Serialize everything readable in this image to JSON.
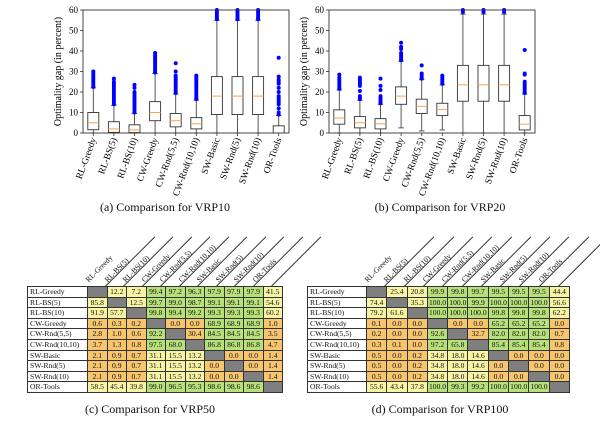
{
  "chart_data": [
    {
      "type": "box",
      "caption": "(a) Comparison for VRP10",
      "ylabel": "Optimality gap (in percent)",
      "ylim": [
        0,
        60
      ],
      "yticks": [
        0,
        10,
        20,
        30,
        40,
        50,
        60
      ],
      "categories": [
        "RL-Greedy",
        "RL-BS(5)",
        "RL-BS(10)",
        "CW-Greedy",
        "CW-Rnd(5,5)",
        "CW-Rnd(10,10)",
        "SW-Basic",
        "SW-Rnd(5)",
        "SW-Rnd(10)",
        "OR-Tools"
      ],
      "boxes": [
        {
          "whisker_low": 0,
          "q1": 1.6,
          "median": 5,
          "q3": 10,
          "whisker_high": 22,
          "outliers": [
            22.5,
            23,
            24,
            25,
            26,
            27,
            28,
            29,
            30
          ]
        },
        {
          "whisker_low": 0,
          "q1": 0.3,
          "median": 2,
          "q3": 5.5,
          "whisker_high": 13.5,
          "outliers": [
            14,
            15,
            16,
            17,
            18,
            19,
            20,
            21,
            22,
            23,
            24,
            25,
            26.5
          ]
        },
        {
          "whisker_low": 0,
          "q1": 0.2,
          "median": 1.5,
          "q3": 4,
          "whisker_high": 9.5,
          "outliers": [
            10,
            11,
            12,
            13,
            14,
            15,
            16,
            17,
            18,
            19,
            20,
            22,
            23.5
          ]
        },
        {
          "whisker_low": 0,
          "q1": 6,
          "median": 10,
          "q3": 15.3,
          "whisker_high": 29,
          "outliers": [
            29.5,
            30,
            31,
            32,
            33,
            34,
            35,
            36,
            37,
            38,
            39
          ]
        },
        {
          "whisker_low": 0,
          "q1": 3,
          "median": 6,
          "q3": 9.5,
          "whisker_high": 19,
          "outliers": [
            19.5,
            20,
            21,
            22,
            23,
            24,
            25,
            26,
            27,
            28,
            30,
            34
          ]
        },
        {
          "whisker_low": 0,
          "q1": 2,
          "median": 4.5,
          "q3": 7.5,
          "whisker_high": 16,
          "outliers": [
            16.5,
            17,
            18,
            19,
            20,
            21,
            22,
            23,
            24,
            25,
            26,
            27,
            28
          ]
        },
        {
          "whisker_low": 0,
          "q1": 9,
          "median": 18,
          "q3": 27.5,
          "whisker_high": 55,
          "outliers": [
            55.5,
            56,
            57,
            58,
            59,
            60
          ]
        },
        {
          "whisker_low": 0,
          "q1": 9,
          "median": 18,
          "q3": 27.5,
          "whisker_high": 55,
          "outliers": [
            55.5,
            56,
            57,
            58,
            59,
            60
          ]
        },
        {
          "whisker_low": 0,
          "q1": 9,
          "median": 18,
          "q3": 27.5,
          "whisker_high": 55,
          "outliers": [
            55.5,
            56,
            57,
            58,
            59,
            60
          ]
        },
        {
          "whisker_low": 0,
          "q1": 0,
          "median": 0,
          "q3": 3.5,
          "whisker_high": 8.5,
          "outliers": [
            9,
            10,
            12,
            14,
            15,
            16,
            17,
            18,
            20,
            22,
            24,
            25,
            26,
            27.5,
            36.7
          ]
        }
      ],
      "colors": {
        "box": "#333333",
        "median": "#f5a54a",
        "outlier": "#0000ff"
      }
    },
    {
      "type": "box",
      "caption": "(b) Comparison for VRP20",
      "ylabel": "Optimality gap (in percent)",
      "ylim": [
        0,
        60
      ],
      "yticks": [
        0,
        10,
        20,
        30,
        40,
        50,
        60
      ],
      "categories": [
        "RL-Greedy",
        "RL-BS(5)",
        "RL-BS(10)",
        "CW-Greedy",
        "CW-Rnd(5,5)",
        "CW-Rnd(10,10)",
        "SW-Basic",
        "SW-Rnd(5)",
        "SW-Rnd(10)",
        "OR-Tools"
      ],
      "boxes": [
        {
          "whisker_low": 0,
          "q1": 4.3,
          "median": 7.3,
          "q3": 11.3,
          "whisker_high": 21,
          "outliers": [
            21.5,
            22,
            23,
            24,
            25,
            26,
            27,
            28.5
          ]
        },
        {
          "whisker_low": 0,
          "q1": 2.5,
          "median": 5,
          "q3": 8,
          "whisker_high": 16,
          "outliers": [
            16.5,
            17,
            18,
            20.5,
            23,
            24,
            25,
            26,
            27
          ]
        },
        {
          "whisker_low": 0,
          "q1": 2,
          "median": 4.5,
          "q3": 7,
          "whisker_high": 14,
          "outliers": [
            14.5,
            15,
            16,
            17,
            18,
            21,
            23,
            26.5
          ]
        },
        {
          "whisker_low": 2.5,
          "q1": 14,
          "median": 18,
          "q3": 22.5,
          "whisker_high": 35,
          "outliers": [
            35.5,
            36,
            37,
            38,
            39,
            41,
            42,
            44
          ]
        },
        {
          "whisker_low": 1,
          "q1": 9.5,
          "median": 13,
          "q3": 16.5,
          "whisker_high": 26,
          "outliers": [
            26.5,
            27,
            28,
            29,
            33
          ]
        },
        {
          "whisker_low": 1.5,
          "q1": 8.5,
          "median": 11.5,
          "q3": 14.5,
          "whisker_high": 23.5,
          "outliers": [
            24,
            25,
            26,
            27,
            28
          ]
        },
        {
          "whisker_low": 0,
          "q1": 15.5,
          "median": 23.5,
          "q3": 33,
          "whisker_high": 58,
          "outliers": [
            59,
            60
          ]
        },
        {
          "whisker_low": 0,
          "q1": 15.5,
          "median": 23.5,
          "q3": 33,
          "whisker_high": 58,
          "outliers": [
            59,
            60
          ]
        },
        {
          "whisker_low": 0,
          "q1": 15.5,
          "median": 23.5,
          "q3": 33,
          "whisker_high": 58,
          "outliers": [
            59,
            60
          ]
        },
        {
          "whisker_low": 0,
          "q1": 1.5,
          "median": 4.3,
          "q3": 8.5,
          "whisker_high": 19,
          "outliers": [
            19.5,
            20,
            21,
            22,
            23,
            24,
            25,
            28.5,
            29,
            40.5
          ]
        }
      ],
      "colors": {
        "box": "#333333",
        "median": "#f5a54a",
        "outlier": "#0000ff"
      }
    }
  ],
  "tables": [
    {
      "caption": "(c) Comparison for VRP50",
      "columns": [
        "RL-Greedy",
        "RL-BS(5)",
        "RL-BS(10)",
        "CW-Greedy",
        "CW-Rnd(5,5)",
        "CW-Rnd(10,10)",
        "SW-Basic",
        "SW-Rnd(5)",
        "SW-Rnd(10)",
        "OR-Tools"
      ],
      "rows": [
        {
          "label": "RL-Greedy",
          "values": [
            "",
            "12.2",
            "7.2",
            "99.4",
            "97.2",
            "96.3",
            "97.9",
            "97.9",
            "97.9",
            "41.5"
          ],
          "colors": [
            "x",
            "y",
            "y",
            "g",
            "g",
            "g",
            "g",
            "g",
            "g",
            "y"
          ]
        },
        {
          "label": "RL-BS(5)",
          "values": [
            "85.8",
            "",
            "12.5",
            "99.7",
            "99.0",
            "98.7",
            "99.1",
            "99.1",
            "99.1",
            "54.6"
          ],
          "colors": [
            "y",
            "x",
            "y",
            "g",
            "g",
            "g",
            "g",
            "g",
            "g",
            "y"
          ]
        },
        {
          "label": "RL-BS(10)",
          "values": [
            "91.9",
            "57.7",
            "",
            "99.8",
            "99.4",
            "99.2",
            "99.3",
            "99.3",
            "99.3",
            "60.2"
          ],
          "colors": [
            "y",
            "y",
            "x",
            "g",
            "g",
            "g",
            "g",
            "g",
            "g",
            "y"
          ]
        },
        {
          "label": "CW-Greedy",
          "values": [
            "0.6",
            "0.3",
            "0.2",
            "",
            "0.0",
            "0.0",
            "68.9",
            "68.9",
            "68.9",
            "1.0"
          ],
          "colors": [
            "o",
            "o",
            "o",
            "x",
            "o",
            "o",
            "g",
            "g",
            "g",
            "o"
          ]
        },
        {
          "label": "CW-Rnd(5,5)",
          "values": [
            "2.8",
            "1.0",
            "0.6",
            "92.2",
            "",
            "30.4",
            "84.5",
            "84.5",
            "84.5",
            "3.5"
          ],
          "colors": [
            "o",
            "o",
            "o",
            "g",
            "x",
            "o",
            "g",
            "g",
            "g",
            "o"
          ]
        },
        {
          "label": "CW-Rnd(10,10)",
          "values": [
            "3.7",
            "1.3",
            "0.8",
            "97.5",
            "68.0",
            "",
            "86.8",
            "86.8",
            "86.8",
            "4.7"
          ],
          "colors": [
            "o",
            "o",
            "o",
            "g",
            "g",
            "x",
            "g",
            "g",
            "g",
            "o"
          ]
        },
        {
          "label": "SW-Basic",
          "values": [
            "2.1",
            "0.9",
            "0.7",
            "31.1",
            "15.5",
            "13.2",
            "",
            "0.0",
            "0.0",
            "1.4"
          ],
          "colors": [
            "o",
            "o",
            "o",
            "y",
            "y",
            "y",
            "x",
            "o",
            "o",
            "o"
          ]
        },
        {
          "label": "SW-Rnd(5)",
          "values": [
            "2.1",
            "0.9",
            "0.7",
            "31.1",
            "15.5",
            "13.2",
            "0.0",
            "",
            "0.0",
            "1.4"
          ],
          "colors": [
            "o",
            "o",
            "o",
            "y",
            "y",
            "y",
            "o",
            "x",
            "o",
            "o"
          ]
        },
        {
          "label": "SW-Rnd(10)",
          "values": [
            "2.1",
            "0.9",
            "0.7",
            "31.1",
            "15.5",
            "13.2",
            "0.0",
            "0.0",
            "",
            "1.4"
          ],
          "colors": [
            "o",
            "o",
            "o",
            "y",
            "y",
            "y",
            "o",
            "o",
            "x",
            "o"
          ]
        },
        {
          "label": "OR-Tools",
          "values": [
            "58.5",
            "45.4",
            "39.8",
            "99.0",
            "96.5",
            "95.3",
            "98.6",
            "98.6",
            "98.6",
            ""
          ],
          "colors": [
            "y",
            "y",
            "y",
            "g",
            "g",
            "g",
            "g",
            "g",
            "g",
            "x"
          ]
        }
      ]
    },
    {
      "caption": "(d) Comparison for VRP100",
      "columns": [
        "RL-Greedy",
        "RL-BS(5)",
        "RL-BS(10)",
        "CW-Greedy",
        "CW-Rnd(5,5)",
        "CW-Rnd(10,10)",
        "SW-Basic",
        "SW-Rnd(5)",
        "SW-Rnd(10)",
        "OR-Tools"
      ],
      "rows": [
        {
          "label": "RL-Greedy",
          "values": [
            "",
            "25.4",
            "20.8",
            "99.9",
            "99.8",
            "99.7",
            "99.5",
            "99.5",
            "99.5",
            "44.4"
          ],
          "colors": [
            "x",
            "y",
            "y",
            "g",
            "g",
            "g",
            "g",
            "g",
            "g",
            "y"
          ]
        },
        {
          "label": "RL-BS(5)",
          "values": [
            "74.4",
            "",
            "35.3",
            "100.0",
            "100.0",
            "99.9",
            "100.0",
            "100.0",
            "100.0",
            "56.6"
          ],
          "colors": [
            "y",
            "x",
            "y",
            "g",
            "g",
            "g",
            "g",
            "g",
            "g",
            "y"
          ]
        },
        {
          "label": "RL-BS(10)",
          "values": [
            "79.2",
            "61.6",
            "",
            "100.0",
            "100.0",
            "100.0",
            "99.8",
            "99.8",
            "99.8",
            "62.2"
          ],
          "colors": [
            "y",
            "y",
            "x",
            "g",
            "g",
            "g",
            "g",
            "g",
            "g",
            "y"
          ]
        },
        {
          "label": "CW-Greedy",
          "values": [
            "0.1",
            "0.0",
            "0.0",
            "",
            "0.0",
            "0.0",
            "65.2",
            "65.2",
            "65.2",
            "0.0"
          ],
          "colors": [
            "o",
            "o",
            "o",
            "x",
            "o",
            "o",
            "g",
            "g",
            "g",
            "o"
          ]
        },
        {
          "label": "CW-Rnd(5,5)",
          "values": [
            "0.2",
            "0.0",
            "0.0",
            "92.6",
            "",
            "32.7",
            "82.0",
            "82.0",
            "82.0",
            "0.7"
          ],
          "colors": [
            "o",
            "o",
            "o",
            "g",
            "x",
            "o",
            "g",
            "g",
            "g",
            "o"
          ]
        },
        {
          "label": "CW-Rnd(10,10)",
          "values": [
            "0.3",
            "0.1",
            "0.0",
            "97.2",
            "65.8",
            "",
            "85.4",
            "85.4",
            "85.4",
            "0.8"
          ],
          "colors": [
            "o",
            "o",
            "o",
            "g",
            "g",
            "x",
            "g",
            "g",
            "g",
            "o"
          ]
        },
        {
          "label": "SW-Basic",
          "values": [
            "0.5",
            "0.0",
            "0.2",
            "34.8",
            "18.0",
            "14.6",
            "",
            "0.0",
            "0.0",
            "0.0"
          ],
          "colors": [
            "o",
            "o",
            "o",
            "y",
            "y",
            "y",
            "x",
            "o",
            "o",
            "o"
          ]
        },
        {
          "label": "SW-Rnd(5)",
          "values": [
            "0.5",
            "0.0",
            "0.2",
            "34.8",
            "18.0",
            "14.6",
            "0.0",
            "",
            "0.0",
            "0.0"
          ],
          "colors": [
            "o",
            "o",
            "o",
            "y",
            "y",
            "y",
            "o",
            "x",
            "o",
            "o"
          ]
        },
        {
          "label": "SW-Rnd(10)",
          "values": [
            "0.5",
            "0.0",
            "0.2",
            "34.8",
            "18.0",
            "14.6",
            "0.0",
            "0.0",
            "",
            "0.0"
          ],
          "colors": [
            "o",
            "o",
            "o",
            "y",
            "y",
            "y",
            "o",
            "o",
            "x",
            "o"
          ]
        },
        {
          "label": "OR-Tools",
          "values": [
            "55.6",
            "43.4",
            "37.8",
            "100.0",
            "99.3",
            "99.2",
            "100.0",
            "100.0",
            "100.0",
            ""
          ],
          "colors": [
            "y",
            "y",
            "y",
            "g",
            "g",
            "g",
            "g",
            "g",
            "g",
            "x"
          ]
        }
      ]
    }
  ]
}
